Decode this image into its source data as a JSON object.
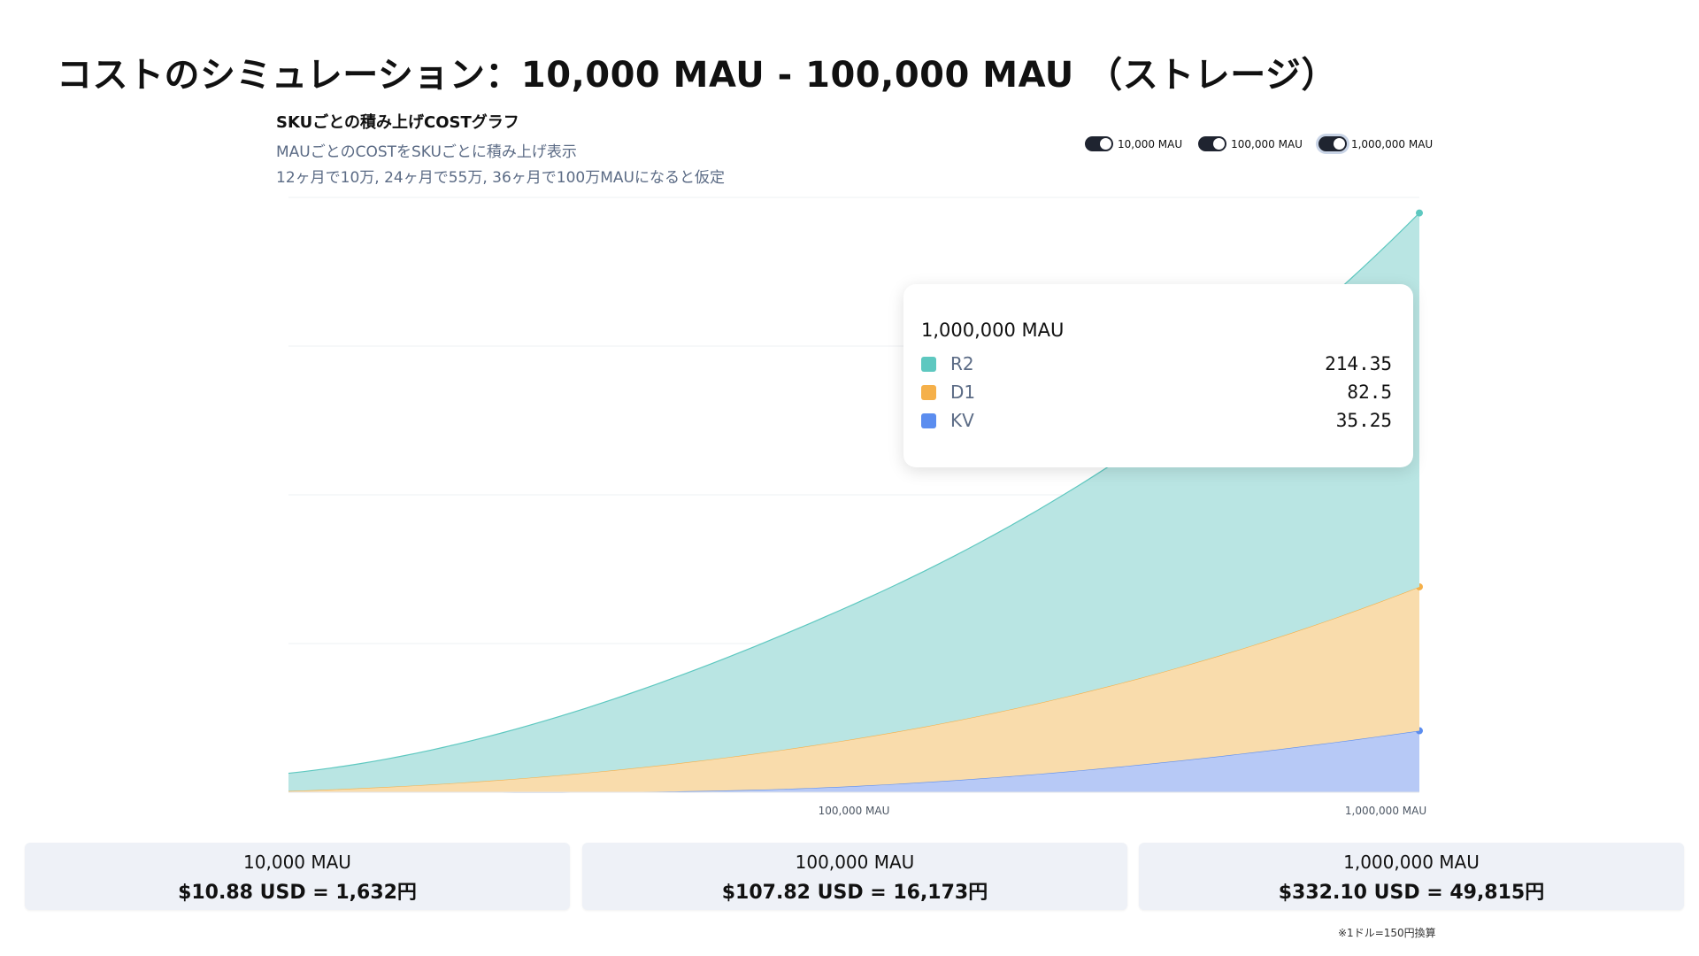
{
  "page_title": "コストのシミュレーション：10,000 MAU - 100,000 MAU （ストレージ）",
  "chart_header": {
    "title": "SKUごとの積み上げCOSTグラフ",
    "subtitle1": "MAUごとのCOSTをSKUごとに積み上げ表示",
    "subtitle2": "12ヶ月で10万, 24ヶ月で55万, 36ヶ月で100万MAUになると仮定"
  },
  "toggles": [
    {
      "label": "10,000 MAU",
      "on": true
    },
    {
      "label": "100,000 MAU",
      "on": true
    },
    {
      "label": "1,000,000 MAU",
      "on": true
    }
  ],
  "colors": {
    "R2": "#5ec8c0",
    "D1": "#f5b04a",
    "KV": "#5b8def",
    "R2_fill": "#b9e5e3",
    "D1_fill": "#f9dcac",
    "KV_fill": "#b7c9f6"
  },
  "chart_data": {
    "type": "area",
    "stacked": true,
    "categories": [
      "10,000 MAU",
      "100,000 MAU",
      "1,000,000 MAU"
    ],
    "series": [
      {
        "name": "KV",
        "values": [
          0.2,
          3.5,
          35.25
        ]
      },
      {
        "name": "D1",
        "values": [
          0.5,
          27.0,
          82.5
        ]
      },
      {
        "name": "R2",
        "values": [
          10.18,
          77.32,
          214.35
        ]
      }
    ],
    "ylim": [
      0,
      340
    ],
    "grid": true,
    "legend": "top-right"
  },
  "tooltip": {
    "title": "1,000,000 MAU",
    "rows": [
      {
        "label": "R2",
        "value": "214.35"
      },
      {
        "label": "D1",
        "value": "82.5"
      },
      {
        "label": "KV",
        "value": "35.25"
      }
    ]
  },
  "cards": [
    {
      "label": "10,000 MAU",
      "value": "$10.88 USD = 1,632円"
    },
    {
      "label": "100,000 MAU",
      "value": "$107.82 USD = 16,173円"
    },
    {
      "label": "1,000,000 MAU",
      "value": "$332.10 USD = 49,815円"
    }
  ],
  "footnote": "※1ドル=150円換算"
}
